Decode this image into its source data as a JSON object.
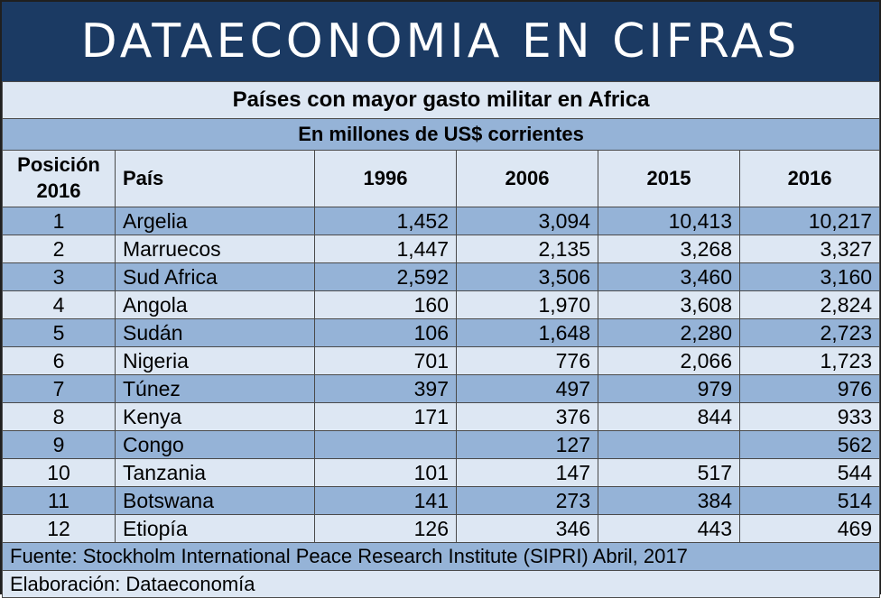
{
  "banner": {
    "title": "DATAECONOMIA EN CIFRAS"
  },
  "table": {
    "title": "Países con mayor gasto militar en Africa",
    "subtitle": "En millones de US$ corrientes",
    "headers": {
      "position": "Posición 2016",
      "country": "País",
      "y1996": "1996",
      "y2006": "2006",
      "y2015": "2015",
      "y2016": "2016"
    },
    "rows": [
      {
        "pos": "1",
        "country": "Argelia",
        "y1996": "1,452",
        "y2006": "3,094",
        "y2015": "10,413",
        "y2016": "10,217"
      },
      {
        "pos": "2",
        "country": "Marruecos",
        "y1996": "1,447",
        "y2006": "2,135",
        "y2015": "3,268",
        "y2016": "3,327"
      },
      {
        "pos": "3",
        "country": "Sud Africa",
        "y1996": "2,592",
        "y2006": "3,506",
        "y2015": "3,460",
        "y2016": "3,160"
      },
      {
        "pos": "4",
        "country": "Angola",
        "y1996": "160",
        "y2006": "1,970",
        "y2015": "3,608",
        "y2016": "2,824"
      },
      {
        "pos": "5",
        "country": "Sudán",
        "y1996": "106",
        "y2006": "1,648",
        "y2015": "2,280",
        "y2016": "2,723"
      },
      {
        "pos": "6",
        "country": "Nigeria",
        "y1996": "701",
        "y2006": "776",
        "y2015": "2,066",
        "y2016": "1,723"
      },
      {
        "pos": "7",
        "country": "Túnez",
        "y1996": "397",
        "y2006": "497",
        "y2015": "979",
        "y2016": "976"
      },
      {
        "pos": "8",
        "country": "Kenya",
        "y1996": "171",
        "y2006": "376",
        "y2015": "844",
        "y2016": "933"
      },
      {
        "pos": "9",
        "country": "Congo",
        "y1996": "",
        "y2006": "127",
        "y2015": "",
        "y2016": "562"
      },
      {
        "pos": "10",
        "country": "Tanzania",
        "y1996": "101",
        "y2006": "147",
        "y2015": "517",
        "y2016": "544"
      },
      {
        "pos": "11",
        "country": "Botswana",
        "y1996": "141",
        "y2006": "273",
        "y2015": "384",
        "y2016": "514"
      },
      {
        "pos": "12",
        "country": "Etiopía",
        "y1996": "126",
        "y2006": "346",
        "y2015": "443",
        "y2016": "469"
      }
    ],
    "source": "Fuente: Stockholm International Peace Research Institute (SIPRI) Abril, 2017",
    "credit": "Elaboración: Dataeconomía"
  },
  "colors": {
    "banner_bg": "#1b3a63",
    "band_dark": "#95b3d7",
    "band_light": "#dde7f3"
  }
}
